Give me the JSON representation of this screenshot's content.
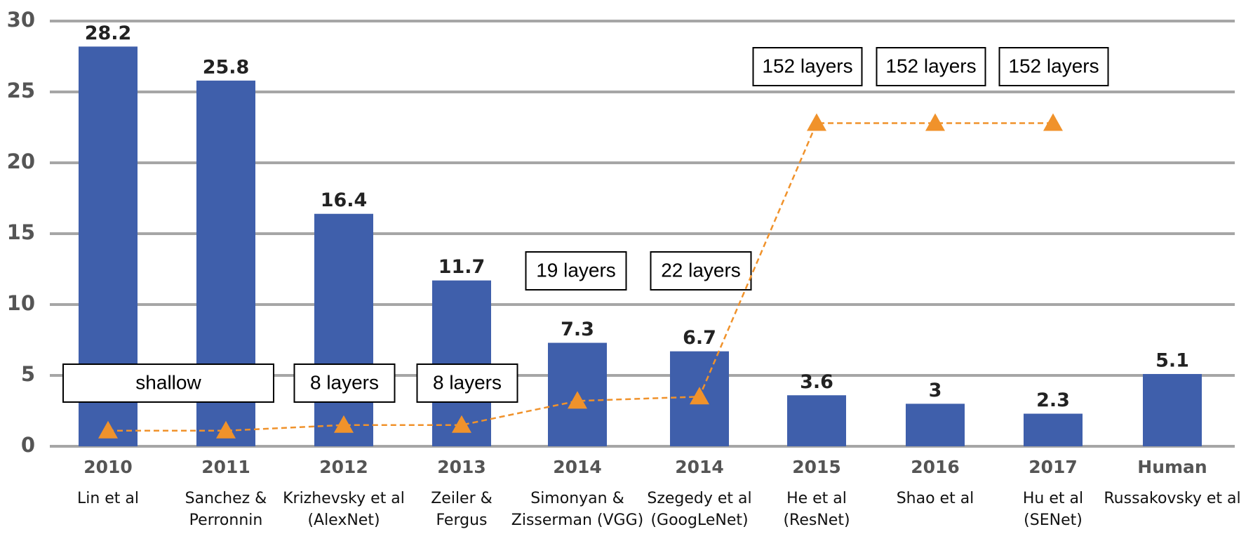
{
  "chart_data": {
    "type": "bar",
    "categories": [
      "2010",
      "2011",
      "2012",
      "2013",
      "2014",
      "2014",
      "2015",
      "2016",
      "2017",
      "Human"
    ],
    "authors": [
      [
        "Lin et al"
      ],
      [
        "Sanchez &",
        "Perronnin"
      ],
      [
        "Krizhevsky et al",
        "(AlexNet)"
      ],
      [
        "Zeiler &",
        "Fergus"
      ],
      [
        "Simonyan &",
        "Zisserman (VGG)"
      ],
      [
        "Szegedy et al",
        "(GoogLeNet)"
      ],
      [
        "He et al",
        "(ResNet)"
      ],
      [
        "Shao et al"
      ],
      [
        "Hu et al",
        "(SENet)"
      ],
      [
        "Russakovsky et al"
      ]
    ],
    "values": [
      28.2,
      25.8,
      16.4,
      11.7,
      7.3,
      6.7,
      3.6,
      3,
      2.3,
      5.1
    ],
    "color": "#3f5fab",
    "depth": {
      "color": "#f0922b",
      "values": [
        1.1,
        1.1,
        1.5,
        1.5,
        3.2,
        3.5,
        22.8,
        22.8,
        22.8,
        null
      ]
    },
    "annotations": [
      "shallow",
      "8 layers",
      "8 layers",
      "19 layers",
      "22 layers",
      "152 layers",
      "152 layers",
      "152 layers"
    ],
    "ylim": [
      0,
      30
    ],
    "yticks": [
      0,
      5,
      10,
      15,
      20,
      25,
      30
    ],
    "grid": true
  }
}
